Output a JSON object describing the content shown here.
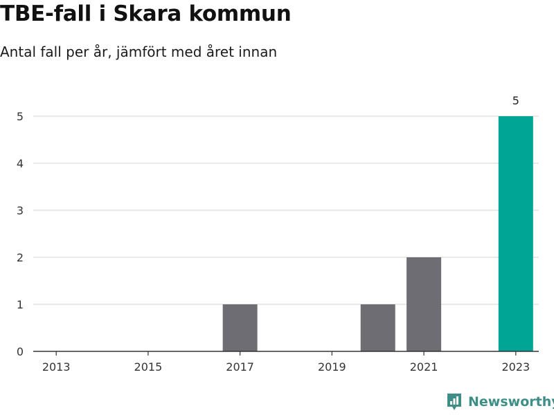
{
  "title": "TBE-fall i Skara kommun",
  "subtitle": "Antal fall per år, jämfört med året innan",
  "brand": {
    "name": "Newsworthy",
    "logo_icon": "newsworthy-chart-logo-icon",
    "color": "#3d8e86"
  },
  "chart_data": {
    "type": "bar",
    "categories": [
      "2013",
      "2014",
      "2015",
      "2016",
      "2017",
      "2018",
      "2019",
      "2020",
      "2021",
      "2022",
      "2023"
    ],
    "values": [
      0,
      0,
      0,
      0,
      1,
      0,
      0,
      1,
      2,
      0,
      5
    ],
    "x_tick_labels": [
      "2013",
      "2015",
      "2017",
      "2019",
      "2021",
      "2023"
    ],
    "ylim": [
      0,
      5
    ],
    "yticks": [
      0,
      1,
      2,
      3,
      4,
      5
    ],
    "grid": true,
    "bar_color": "#6d6d73",
    "highlight_color": "#00a596",
    "highlight_category": "2023",
    "data_labels": [
      {
        "category": "2023",
        "text": "5"
      }
    ]
  }
}
